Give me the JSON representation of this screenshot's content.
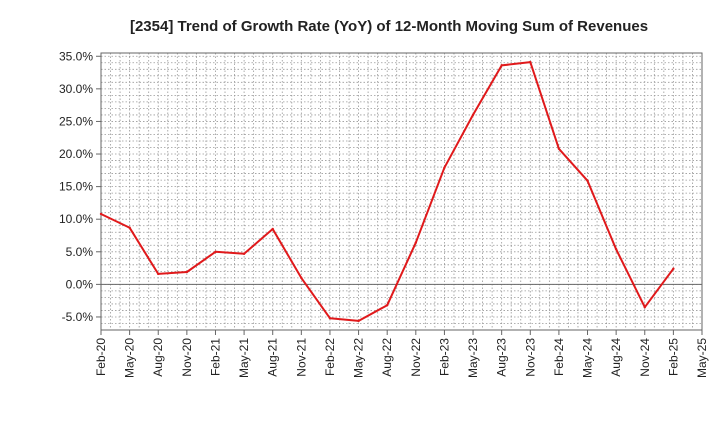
{
  "chart_data": {
    "type": "line",
    "title": "[2354]  Trend of Growth Rate (YoY) of 12-Month Moving Sum of Revenues",
    "xlabel": "",
    "ylabel": "",
    "x_tick_labels": [
      "Feb-20",
      "May-20",
      "Aug-20",
      "Nov-20",
      "Feb-21",
      "May-21",
      "Aug-21",
      "Nov-21",
      "Feb-22",
      "May-22",
      "Aug-22",
      "Nov-22",
      "Feb-23",
      "May-23",
      "Aug-23",
      "Nov-23",
      "Feb-24",
      "May-24",
      "Aug-24",
      "Nov-24",
      "Feb-25",
      "May-25"
    ],
    "y_tick_labels": [
      "35.0%",
      "30.0%",
      "25.0%",
      "20.0%",
      "15.0%",
      "10.0%",
      "5.0%",
      "0.0%",
      "-5.0%"
    ],
    "y_ticks": [
      35,
      30,
      25,
      20,
      15,
      10,
      5,
      0,
      -5
    ],
    "ylim": [
      -7,
      35.5
    ],
    "grid": true,
    "series": [
      {
        "color": "#e0191b",
        "x": [
          "Feb-20",
          "May-20",
          "Aug-20",
          "Nov-20",
          "Feb-21",
          "May-21",
          "Aug-21",
          "Nov-21",
          "Feb-22",
          "May-22",
          "Aug-22",
          "Nov-22",
          "Feb-23",
          "May-23",
          "Aug-23",
          "Nov-23",
          "Feb-24",
          "May-24",
          "Aug-24",
          "Nov-24",
          "Feb-25"
        ],
        "values": [
          10.8,
          8.7,
          1.6,
          1.9,
          5.0,
          4.7,
          8.5,
          1.0,
          -5.2,
          -5.6,
          -3.2,
          6.4,
          17.9,
          26.0,
          33.6,
          34.1,
          20.8,
          15.9,
          5.4,
          -3.5,
          2.4
        ]
      }
    ]
  }
}
